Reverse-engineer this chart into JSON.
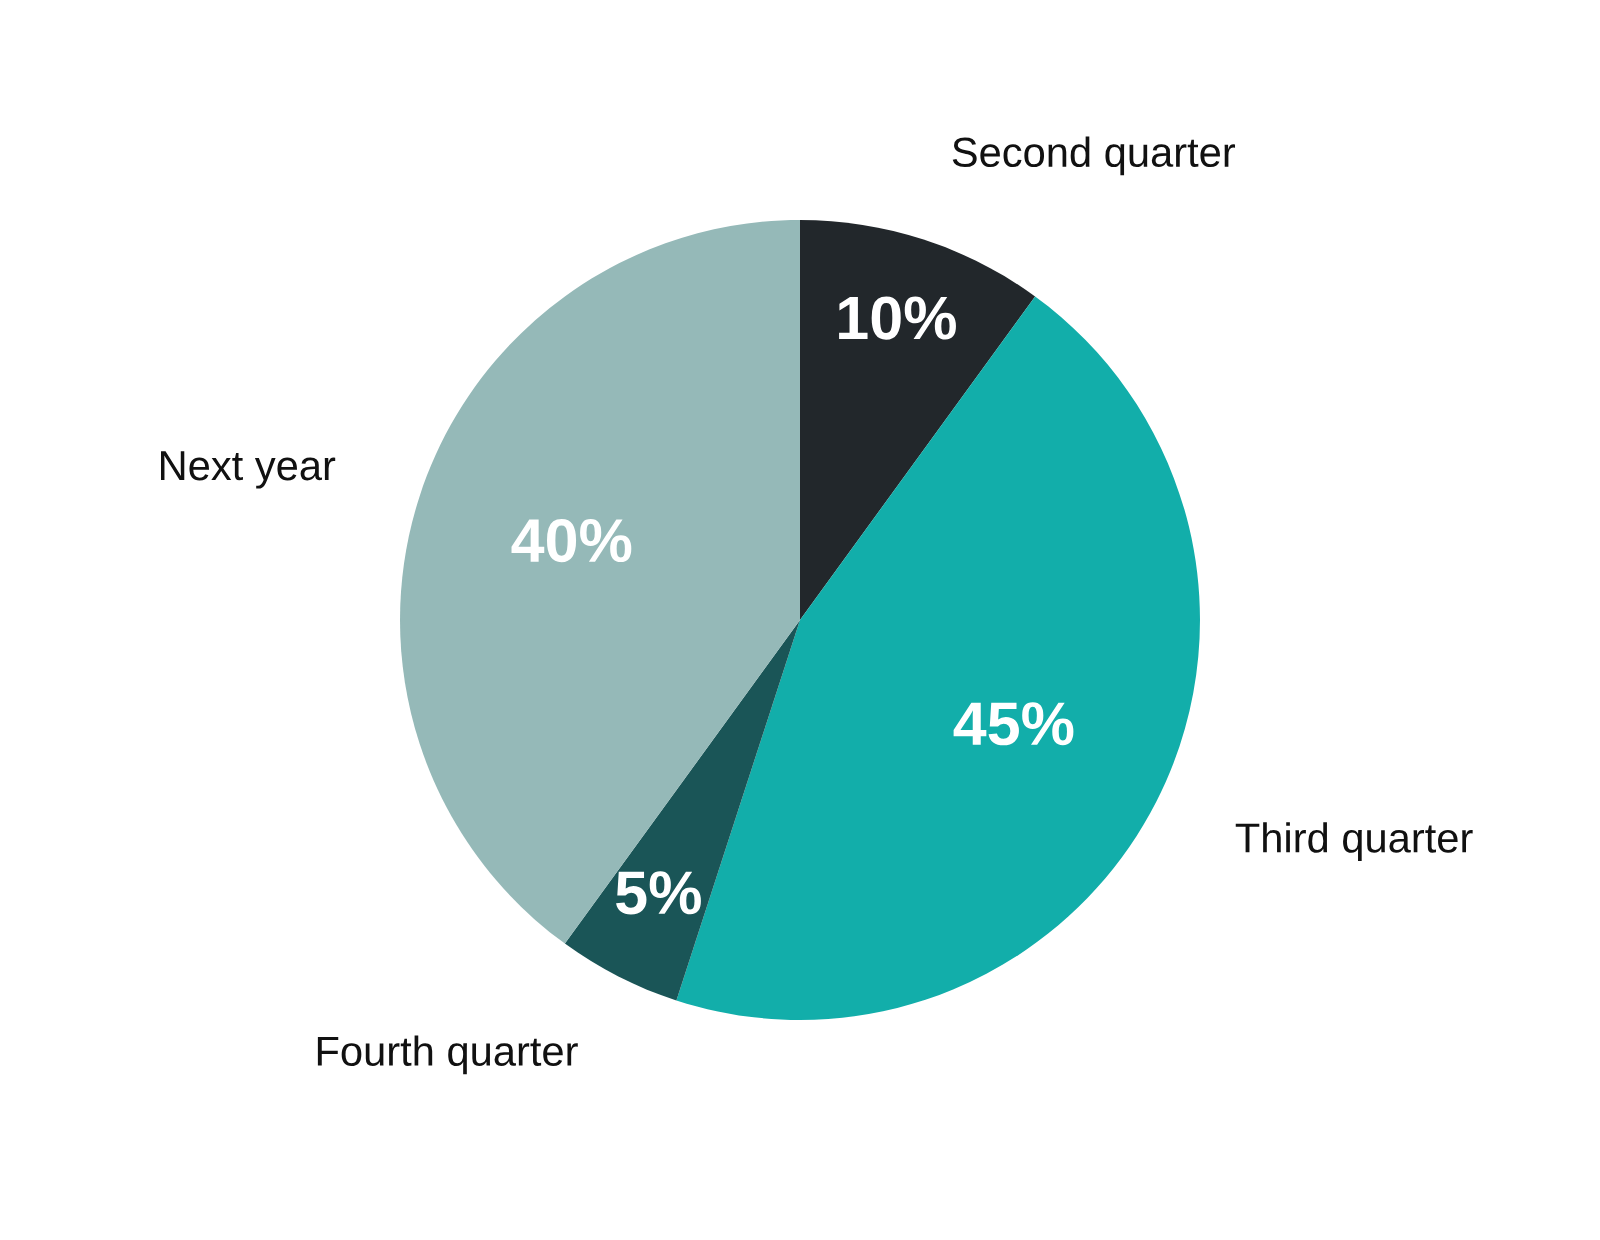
{
  "chart_data": {
    "type": "pie",
    "categories": [
      "Second quarter",
      "Third quarter",
      "Fourth quarter",
      "Next year"
    ],
    "values": [
      10,
      45,
      5,
      40
    ],
    "colors": [
      "#22272b",
      "#12aeaa",
      "#1a5557",
      "#95b9b8"
    ],
    "value_labels": [
      "10%",
      "45%",
      "5%",
      "40%"
    ]
  }
}
